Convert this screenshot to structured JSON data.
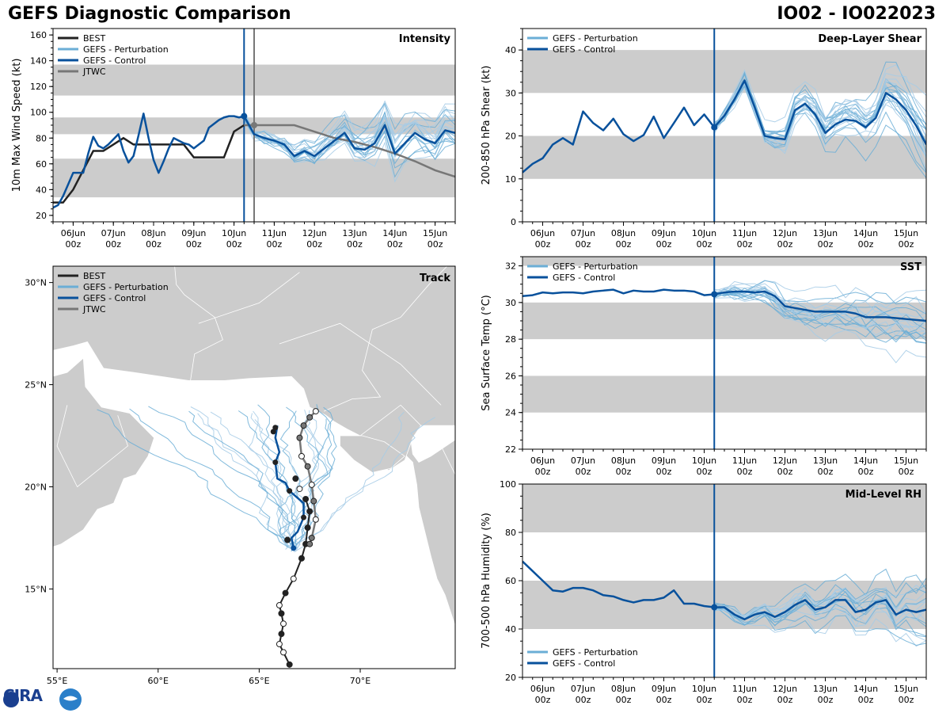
{
  "header": {
    "title": "GEFS Diagnostic Comparison",
    "storm": "IO02 - IO022023",
    "logo_text": "CIRA"
  },
  "colors": {
    "best": "#222222",
    "perturbation": "#6baed6",
    "perturbation_light": "#a6cbe6",
    "control": "#08519c",
    "jtwc": "#777777",
    "band": "#cccccc",
    "land": "#cccccc",
    "water": "#ffffff"
  },
  "time_axis": {
    "ticks": [
      {
        "day": 6,
        "top": "06Jun",
        "bottom": "00z"
      },
      {
        "day": 7,
        "top": "07Jun",
        "bottom": "00z"
      },
      {
        "day": 8,
        "top": "08Jun",
        "bottom": "00z"
      },
      {
        "day": 9,
        "top": "09Jun",
        "bottom": "00z"
      },
      {
        "day": 10,
        "top": "10Jun",
        "bottom": "00z"
      },
      {
        "day": 11,
        "top": "11Jun",
        "bottom": "00z"
      },
      {
        "day": 12,
        "top": "12Jun",
        "bottom": "00z"
      },
      {
        "day": 13,
        "top": "13Jun",
        "bottom": "00z"
      },
      {
        "day": 14,
        "top": "14Jun",
        "bottom": "00z"
      },
      {
        "day": 15,
        "top": "15Jun",
        "bottom": "00z"
      }
    ],
    "xlim": [
      5.5,
      15.5
    ],
    "init_day": 10.25,
    "jtwc_day": 10.5
  },
  "chart_data": [
    {
      "id": "intensity",
      "type": "line",
      "title": "Intensity",
      "ylabel": "10m Max Wind Speed (kt)",
      "ylim": [
        15,
        165
      ],
      "yticks": [
        20,
        40,
        60,
        80,
        100,
        120,
        140,
        160
      ],
      "bands": [
        [
          34,
          64
        ],
        [
          83,
          96
        ],
        [
          113,
          137
        ]
      ],
      "legend": [
        "BEST",
        "GEFS - Perturbation",
        "GEFS - Control",
        "JTWC"
      ],
      "legend_position": "top-left",
      "best": {
        "t": [
          5.5,
          5.75,
          6.0,
          6.25,
          6.5,
          6.75,
          7.0,
          7.25,
          7.5,
          7.75,
          8.0,
          8.25,
          8.5,
          8.75,
          9.0,
          9.25,
          9.5,
          9.75,
          10.0,
          10.25
        ],
        "v": [
          30,
          30,
          40,
          55,
          70,
          70,
          75,
          80,
          75,
          75,
          75,
          75,
          75,
          75,
          65,
          65,
          65,
          65,
          85,
          90
        ]
      },
      "control": {
        "t": [
          5.5,
          5.625,
          5.75,
          5.875,
          6.0,
          6.125,
          6.25,
          6.375,
          6.5,
          6.625,
          6.75,
          6.875,
          7.0,
          7.125,
          7.25,
          7.375,
          7.5,
          7.625,
          7.75,
          7.875,
          8.0,
          8.125,
          8.25,
          8.375,
          8.5,
          8.625,
          8.75,
          8.875,
          9.0,
          9.125,
          9.25,
          9.375,
          9.5,
          9.625,
          9.75,
          9.875,
          10.0,
          10.125,
          10.25,
          10.5,
          10.75,
          11.0,
          11.25,
          11.5,
          11.75,
          12.0,
          12.25,
          12.5,
          12.75,
          13.0,
          13.25,
          13.5,
          13.75,
          14.0,
          14.25,
          14.5,
          14.75,
          15.0,
          15.25,
          15.5
        ],
        "v": [
          26,
          28,
          35,
          44,
          53,
          53,
          53,
          68,
          81,
          74,
          72,
          75,
          79,
          83,
          70,
          61,
          66,
          82,
          99,
          80,
          63,
          53,
          62,
          72,
          80,
          78,
          76,
          75,
          72,
          75,
          78,
          88,
          91,
          94,
          96,
          97,
          97,
          96,
          97,
          83,
          80,
          78,
          75,
          66,
          70,
          66,
          72,
          78,
          84,
          72,
          71,
          76,
          90,
          68,
          76,
          84,
          79,
          76,
          86,
          84
        ]
      },
      "jtwc": {
        "t": [
          10.25,
          10.5,
          11.0,
          11.5,
          12.0,
          12.5,
          13.0,
          13.5,
          14.0,
          14.5,
          15.0,
          15.5
        ],
        "v": [
          90,
          90,
          90,
          90,
          85,
          80,
          77,
          73,
          68,
          62,
          55,
          50
        ]
      },
      "perturbation_count": 20,
      "perturbation_seed": 11,
      "perturbation_start": 10.25
    },
    {
      "id": "shear",
      "type": "line",
      "title": "Deep-Layer Shear",
      "ylabel": "200-850 hPa Shear (kt)",
      "ylim": [
        0,
        45
      ],
      "yticks": [
        0,
        10,
        20,
        30,
        40
      ],
      "bands": [
        [
          10,
          20
        ],
        [
          30,
          40
        ]
      ],
      "legend": [
        "GEFS - Perturbation",
        "GEFS - Control"
      ],
      "legend_position": "top-left",
      "control": {
        "t": [
          5.5,
          5.75,
          6.0,
          6.25,
          6.5,
          6.75,
          7.0,
          7.25,
          7.5,
          7.75,
          8.0,
          8.25,
          8.5,
          8.75,
          9.0,
          9.25,
          9.5,
          9.75,
          10.0,
          10.25,
          10.5,
          10.75,
          11.0,
          11.25,
          11.5,
          11.75,
          12.0,
          12.25,
          12.5,
          12.75,
          13.0,
          13.25,
          13.5,
          13.75,
          14.0,
          14.25,
          14.5,
          14.75,
          15.0,
          15.25,
          15.5
        ],
        "v": [
          11.5,
          13.5,
          14.8,
          18,
          19.5,
          18,
          25.7,
          23,
          21.3,
          24,
          20.4,
          18.8,
          20.2,
          24.5,
          19.5,
          23,
          26.6,
          22.5,
          25,
          22,
          24.7,
          28.5,
          32.9,
          26.7,
          20,
          19.5,
          19.2,
          26,
          27.5,
          25,
          20.7,
          22.7,
          23.8,
          23.5,
          22,
          24.2,
          30,
          28.5,
          26,
          22.4,
          18
        ]
      },
      "perturbation_count": 22,
      "perturbation_seed": 23,
      "perturbation_start": 10.25
    },
    {
      "id": "sst",
      "type": "line",
      "title": "SST",
      "ylabel": "Sea Surface Temp (°C)",
      "ylim": [
        22,
        32.5
      ],
      "yticks": [
        22,
        24,
        26,
        28,
        30,
        32
      ],
      "bands": [
        [
          24,
          26
        ],
        [
          28,
          30
        ],
        [
          32,
          34
        ]
      ],
      "legend": [
        "GEFS - Perturbation",
        "GEFS - Control"
      ],
      "legend_position": "top-left",
      "control": {
        "t": [
          5.5,
          5.75,
          6.0,
          6.25,
          6.5,
          6.75,
          7.0,
          7.25,
          7.5,
          7.75,
          8.0,
          8.25,
          8.5,
          8.75,
          9.0,
          9.25,
          9.5,
          9.75,
          10.0,
          10.25,
          10.5,
          10.75,
          11.0,
          11.25,
          11.5,
          11.75,
          12.0,
          12.25,
          12.5,
          12.75,
          13.0,
          13.25,
          13.5,
          13.75,
          14.0,
          14.25,
          14.5,
          14.75,
          15.0,
          15.25,
          15.5
        ],
        "v": [
          30.35,
          30.4,
          30.55,
          30.5,
          30.55,
          30.55,
          30.5,
          30.6,
          30.65,
          30.7,
          30.5,
          30.65,
          30.6,
          30.6,
          30.7,
          30.65,
          30.65,
          30.6,
          30.4,
          30.45,
          30.55,
          30.6,
          30.6,
          30.55,
          30.6,
          30.35,
          29.8,
          29.7,
          29.6,
          29.5,
          29.5,
          29.5,
          29.5,
          29.4,
          29.2,
          29.2,
          29.2,
          29.15,
          29.1,
          29.05,
          29.0
        ]
      },
      "perturbation_count": 20,
      "perturbation_seed": 37,
      "perturbation_start": 10.25
    },
    {
      "id": "rh",
      "type": "line",
      "title": "Mid-Level RH",
      "ylabel": "700-500 hPa Humidity (%)",
      "ylim": [
        20,
        100
      ],
      "yticks": [
        20,
        40,
        60,
        80,
        100
      ],
      "bands": [
        [
          40,
          60
        ],
        [
          80,
          100
        ]
      ],
      "legend": [
        "GEFS - Perturbation",
        "GEFS - Control"
      ],
      "legend_position": "bottom-left",
      "control": {
        "t": [
          5.5,
          5.75,
          6.0,
          6.25,
          6.5,
          6.75,
          7.0,
          7.25,
          7.5,
          7.75,
          8.0,
          8.25,
          8.5,
          8.75,
          9.0,
          9.25,
          9.5,
          9.75,
          10.0,
          10.25,
          10.5,
          10.75,
          11.0,
          11.25,
          11.5,
          11.75,
          12.0,
          12.25,
          12.5,
          12.75,
          13.0,
          13.25,
          13.5,
          13.75,
          14.0,
          14.25,
          14.5,
          14.75,
          15.0,
          15.25,
          15.5
        ],
        "v": [
          68,
          64,
          60,
          56,
          55.5,
          57,
          57,
          56,
          54,
          53.5,
          52,
          51,
          52,
          52,
          53,
          56,
          50.5,
          50.5,
          49.5,
          49,
          49,
          46,
          44,
          46,
          47,
          45,
          47,
          50,
          52,
          48,
          49,
          52,
          52,
          47,
          48,
          51,
          52,
          46,
          48,
          47,
          48
        ]
      },
      "perturbation_count": 20,
      "perturbation_seed": 53,
      "perturbation_start": 10.25
    },
    {
      "id": "track",
      "type": "map",
      "title": "Track",
      "xlim": [
        54.8,
        74.7
      ],
      "ylim": [
        11.1,
        30.8
      ],
      "xticks": [
        {
          "v": 55,
          "label": "55°E"
        },
        {
          "v": 60,
          "label": "60°E"
        },
        {
          "v": 65,
          "label": "65°E"
        },
        {
          "v": 70,
          "label": "70°E"
        }
      ],
      "yticks": [
        {
          "v": 15,
          "label": "15°N"
        },
        {
          "v": 20,
          "label": "20°N"
        },
        {
          "v": 25,
          "label": "25°N"
        },
        {
          "v": 30,
          "label": "30°N"
        }
      ],
      "legend": [
        "BEST",
        "GEFS - Perturbation",
        "GEFS - Control",
        "JTWC"
      ],
      "legend_position": "top-left",
      "best": {
        "lon": [
          66.5,
          66.2,
          66.0,
          66.1,
          66.2,
          66.1,
          66.0,
          66.3,
          66.7,
          67.1,
          67.3,
          67.4,
          67.5,
          67.3,
          67.0,
          66.8,
          66.4
        ],
        "lat": [
          11.3,
          11.9,
          12.3,
          12.8,
          13.3,
          13.8,
          14.2,
          14.8,
          15.5,
          16.5,
          17.2,
          18.0,
          18.8,
          19.4,
          19.9,
          20.4,
          17.4
        ]
      },
      "best_fill": [
        false,
        true,
        true,
        false,
        true,
        false,
        true,
        false,
        true,
        false,
        false,
        false,
        false,
        false,
        true,
        false,
        false
      ],
      "control": {
        "lon": [
          66.7,
          66.6,
          66.9,
          67.2,
          67.2,
          66.5,
          66.3,
          65.9,
          65.8,
          66.0,
          65.8,
          65.9
        ],
        "lat": [
          17.0,
          17.5,
          17.8,
          18.5,
          19.2,
          19.8,
          20.2,
          20.4,
          21.2,
          21.7,
          22.4,
          23.0
        ]
      },
      "control_dots": {
        "lon": [
          66.7,
          67.2,
          66.5,
          65.8,
          65.7,
          65.8
        ],
        "lat": [
          17.0,
          18.5,
          19.8,
          21.2,
          22.7,
          22.9
        ]
      },
      "jtwc": {
        "lon": [
          67.5,
          67.6,
          67.8,
          67.7,
          67.6,
          67.4,
          67.1,
          67.0,
          67.2,
          67.5,
          67.8
        ],
        "lat": [
          17.2,
          17.5,
          18.4,
          19.3,
          20.1,
          21.0,
          21.5,
          22.4,
          23.0,
          23.4,
          23.7
        ]
      },
      "jtwc_fill": [
        false,
        false,
        true,
        false,
        true,
        false,
        true,
        false,
        false,
        false,
        true
      ],
      "perturbation_count": 22,
      "perturbation_seed": 71
    }
  ]
}
